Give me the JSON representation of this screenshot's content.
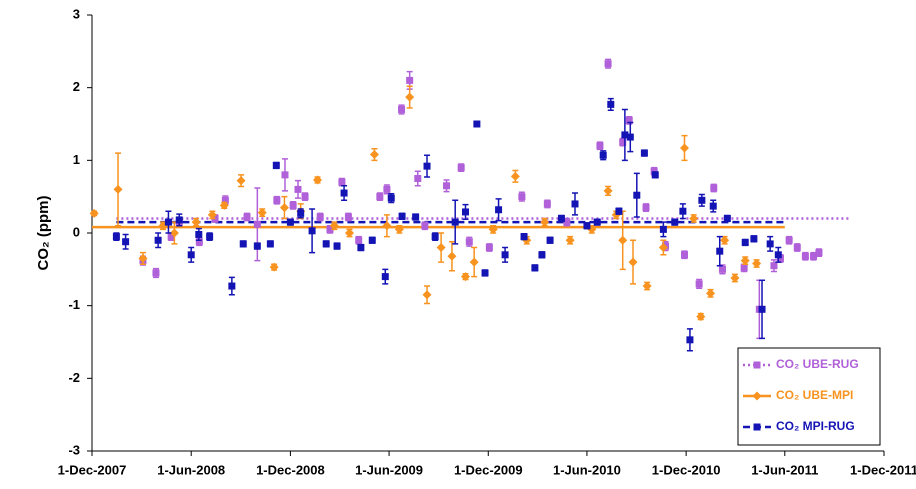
{
  "chart_data": {
    "type": "scatter",
    "y_label": "CO₂ (ppm)",
    "ylim": [
      -3,
      3
    ],
    "yticks": [
      -3,
      -2,
      -1,
      0,
      1,
      2,
      3
    ],
    "xlim": [
      "2007-12-01",
      "2011-12-01"
    ],
    "xticks": [
      {
        "value": "2007-12-01",
        "label": "1-Dec-2007"
      },
      {
        "value": "2008-06-01",
        "label": "1-Jun-2008"
      },
      {
        "value": "2008-12-01",
        "label": "1-Dec-2008"
      },
      {
        "value": "2009-06-01",
        "label": "1-Jun-2009"
      },
      {
        "value": "2009-12-01",
        "label": "1-Dec-2009"
      },
      {
        "value": "2010-06-01",
        "label": "1-Jun-2010"
      },
      {
        "value": "2010-12-01",
        "label": "1-Dec-2010"
      },
      {
        "value": "2011-06-01",
        "label": "1-Jun-2011"
      },
      {
        "value": "2011-12-01",
        "label": "1-Dec-2011"
      }
    ],
    "legend": "bottom-right",
    "series": [
      {
        "name": "CO₂ UBE-RUG",
        "color": "#b060d8",
        "marker": "square",
        "line_style": "dotted",
        "mean": 0.2,
        "mean_span": [
          "2008-01-15",
          "2011-10-01"
        ],
        "x": [
          "2008-03-04",
          "2008-03-28",
          "2008-04-25",
          "2008-05-10",
          "2008-06-16",
          "2008-07-15",
          "2008-08-03",
          "2008-09-12",
          "2008-10-01",
          "2008-11-06",
          "2008-11-21",
          "2008-12-06",
          "2008-12-15",
          "2008-12-28",
          "2009-01-25",
          "2009-02-12",
          "2009-03-06",
          "2009-03-18",
          "2009-04-06",
          "2009-05-15",
          "2009-05-28",
          "2009-06-24",
          "2009-07-09",
          "2009-07-24",
          "2009-08-06",
          "2009-09-15",
          "2009-10-12",
          "2009-10-27",
          "2009-12-03",
          "2010-02-01",
          "2010-03-20",
          "2010-04-25",
          "2010-06-25",
          "2010-07-10",
          "2010-08-06",
          "2010-08-18",
          "2010-09-18",
          "2010-10-03",
          "2010-10-24",
          "2010-11-28",
          "2010-12-25",
          "2011-01-21",
          "2011-02-06",
          "2011-03-18",
          "2011-04-15",
          "2011-05-12",
          "2011-05-24",
          "2011-06-09",
          "2011-06-24",
          "2011-07-09",
          "2011-07-24",
          "2011-08-03"
        ],
        "values": [
          -0.38,
          -0.55,
          -0.05,
          0.15,
          -0.12,
          0.2,
          0.45,
          0.22,
          0.12,
          0.45,
          0.8,
          0.38,
          0.6,
          0.5,
          0.22,
          0.05,
          0.7,
          0.22,
          -0.1,
          0.5,
          0.6,
          1.7,
          2.1,
          0.75,
          0.1,
          0.65,
          0.9,
          -0.12,
          -0.2,
          0.5,
          0.4,
          0.15,
          1.2,
          2.33,
          1.25,
          1.55,
          0.35,
          0.85,
          -0.18,
          -0.3,
          -0.7,
          0.62,
          -0.5,
          -0.48,
          -1.05,
          -0.45,
          -0.35,
          -0.1,
          -0.2,
          -0.32,
          -0.32,
          -0.27
        ],
        "errors": [
          0.06,
          0.06,
          0.05,
          0.05,
          0.05,
          0.05,
          0.06,
          0.05,
          0.5,
          0.05,
          0.22,
          0.05,
          0.12,
          0.05,
          0.05,
          0.05,
          0.05,
          0.05,
          0.05,
          0.05,
          0.06,
          0.06,
          0.12,
          0.1,
          0.05,
          0.08,
          0.05,
          0.06,
          0.05,
          0.06,
          0.05,
          0.05,
          0.05,
          0.06,
          0.05,
          0.05,
          0.05,
          0.05,
          0.06,
          0.05,
          0.06,
          0.05,
          0.06,
          0.05,
          0.4,
          0.08,
          0.05,
          0.05,
          0.05,
          0.05,
          0.05,
          0.05
        ]
      },
      {
        "name": "CO₂ UBE-MPI",
        "color": "#f7931e",
        "marker": "diamond",
        "line_style": "solid",
        "mean": 0.08,
        "mean_span": [
          "2007-12-01",
          "2011-06-01"
        ],
        "x": [
          "2007-12-05",
          "2008-01-18",
          "2008-03-04",
          "2008-04-10",
          "2008-05-01",
          "2008-06-10",
          "2008-07-10",
          "2008-08-01",
          "2008-09-01",
          "2008-10-10",
          "2008-11-01",
          "2008-11-20",
          "2008-12-20",
          "2009-01-20",
          "2009-02-20",
          "2009-03-20",
          "2009-05-05",
          "2009-05-28",
          "2009-06-20",
          "2009-07-09",
          "2009-08-10",
          "2009-09-05",
          "2009-09-25",
          "2009-10-20",
          "2009-11-05",
          "2009-12-10",
          "2010-01-20",
          "2010-02-10",
          "2010-03-15",
          "2010-05-01",
          "2010-06-10",
          "2010-07-10",
          "2010-07-25",
          "2010-08-06",
          "2010-08-25",
          "2010-09-20",
          "2010-10-20",
          "2010-11-28",
          "2010-12-15",
          "2010-12-28",
          "2011-01-15",
          "2011-02-10",
          "2011-03-01",
          "2011-03-20",
          "2011-04-10"
        ],
        "values": [
          0.27,
          0.6,
          -0.35,
          0.1,
          0.0,
          0.15,
          0.25,
          0.38,
          0.72,
          0.28,
          -0.47,
          0.35,
          0.3,
          0.73,
          0.1,
          0.0,
          1.08,
          0.1,
          0.05,
          1.87,
          -0.85,
          -0.2,
          -0.32,
          -0.6,
          -0.4,
          0.05,
          0.78,
          -0.1,
          0.15,
          -0.1,
          0.05,
          0.58,
          0.25,
          -0.1,
          -0.4,
          -0.73,
          -0.2,
          1.17,
          0.2,
          -1.15,
          -0.83,
          -0.1,
          -0.62,
          -0.38,
          -0.42
        ],
        "errors": [
          0.03,
          0.5,
          0.08,
          0.05,
          0.15,
          0.05,
          0.05,
          0.04,
          0.08,
          0.05,
          0.04,
          0.15,
          0.1,
          0.04,
          0.05,
          0.05,
          0.08,
          0.15,
          0.05,
          0.15,
          0.12,
          0.2,
          0.2,
          0.04,
          0.2,
          0.05,
          0.08,
          0.05,
          0.05,
          0.05,
          0.05,
          0.06,
          0.05,
          0.4,
          0.3,
          0.05,
          0.1,
          0.17,
          0.05,
          0.04,
          0.05,
          0.05,
          0.05,
          0.05,
          0.05
        ]
      },
      {
        "name": "CO₂ MPI-RUG",
        "color": "#1414b4",
        "marker": "square",
        "line_style": "dashed",
        "mean": 0.15,
        "mean_span": [
          "2008-01-15",
          "2011-06-01"
        ],
        "x": [
          "2008-01-15",
          "2008-02-01",
          "2008-04-01",
          "2008-04-20",
          "2008-05-10",
          "2008-06-01",
          "2008-06-15",
          "2008-07-05",
          "2008-08-15",
          "2008-09-05",
          "2008-10-01",
          "2008-10-25",
          "2008-11-05",
          "2008-12-01",
          "2008-12-20",
          "2009-01-10",
          "2009-02-05",
          "2009-02-25",
          "2009-03-10",
          "2009-04-10",
          "2009-05-01",
          "2009-05-25",
          "2009-06-05",
          "2009-06-25",
          "2009-07-20",
          "2009-08-10",
          "2009-08-25",
          "2009-10-01",
          "2009-10-20",
          "2009-11-10",
          "2009-11-25",
          "2009-12-20",
          "2010-01-01",
          "2010-02-05",
          "2010-02-25",
          "2010-03-10",
          "2010-03-25",
          "2010-04-15",
          "2010-05-10",
          "2010-06-01",
          "2010-06-20",
          "2010-07-01",
          "2010-07-15",
          "2010-07-30",
          "2010-08-10",
          "2010-08-20",
          "2010-09-01",
          "2010-09-15",
          "2010-10-05",
          "2010-10-20",
          "2010-11-10",
          "2010-11-25",
          "2010-12-08",
          "2010-12-30",
          "2011-01-20",
          "2011-02-01",
          "2011-02-15",
          "2011-03-20",
          "2011-04-05",
          "2011-04-20",
          "2011-05-05",
          "2011-05-20"
        ],
        "values": [
          -0.05,
          -0.12,
          -0.1,
          0.15,
          0.18,
          -0.3,
          -0.02,
          -0.05,
          -0.73,
          -0.15,
          -0.18,
          -0.15,
          0.93,
          0.15,
          0.27,
          0.03,
          -0.15,
          -0.18,
          0.55,
          -0.2,
          -0.1,
          -0.6,
          0.48,
          0.23,
          0.22,
          0.92,
          -0.05,
          0.15,
          0.29,
          1.5,
          -0.55,
          0.32,
          -0.3,
          -0.05,
          -0.48,
          -0.3,
          -0.1,
          0.2,
          0.4,
          0.1,
          0.15,
          1.07,
          1.77,
          0.3,
          1.35,
          1.32,
          0.52,
          1.1,
          0.8,
          0.05,
          0.15,
          0.3,
          -1.47,
          0.45,
          0.37,
          -0.25,
          0.2,
          -0.13,
          -0.08,
          -1.05,
          -0.15,
          -0.3
        ],
        "errors": [
          0.05,
          0.1,
          0.1,
          0.15,
          0.08,
          0.1,
          0.08,
          0.05,
          0.12,
          0.04,
          0.04,
          0.04,
          0.04,
          0.04,
          0.06,
          0.3,
          0.04,
          0.04,
          0.1,
          0.04,
          0.04,
          0.1,
          0.06,
          0.04,
          0.04,
          0.15,
          0.05,
          0.3,
          0.1,
          0.03,
          0.04,
          0.15,
          0.1,
          0.04,
          0.04,
          0.04,
          0.04,
          0.04,
          0.15,
          0.04,
          0.04,
          0.06,
          0.08,
          0.04,
          0.35,
          0.2,
          0.3,
          0.04,
          0.04,
          0.1,
          0.04,
          0.1,
          0.15,
          0.08,
          0.08,
          0.2,
          0.04,
          0.04,
          0.04,
          0.4,
          0.1,
          0.1
        ]
      }
    ]
  }
}
